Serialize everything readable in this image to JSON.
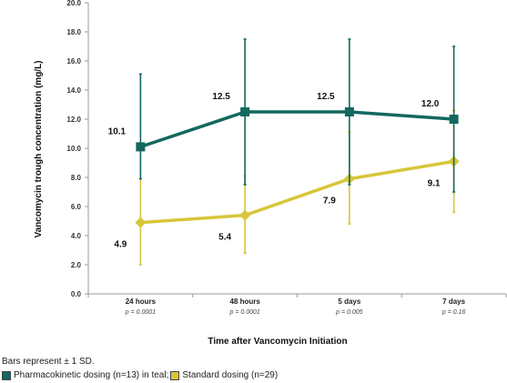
{
  "chart_data": {
    "type": "line",
    "categories": [
      "24 hours",
      "48 hours",
      "5 days",
      "7 days"
    ],
    "p_values": [
      "p = 0.0001",
      "p = 0.0001",
      "p = 0.005",
      "p = 0.16"
    ],
    "xlabel": "Time after Vancomycin Initiation",
    "ylabel": "Vancomycin trough concentration (mg/L)",
    "ylim": [
      0,
      20
    ],
    "yticks": [
      "0.0",
      "2.0",
      "4.0",
      "6.0",
      "8.0",
      "10.0",
      "12.0",
      "14.0",
      "16.0",
      "18.0",
      "20.0"
    ],
    "grid": false,
    "series": [
      {
        "values": [
          10.1,
          12.5,
          12.5,
          12.0
        ],
        "labels": [
          "10.1",
          "12.5",
          "12.5",
          "12.0"
        ],
        "err_high": [
          15.1,
          17.5,
          17.5,
          17.0
        ],
        "err_low": [
          7.9,
          7.5,
          7.5,
          7.0
        ],
        "color": "#13685f",
        "marker": "square"
      },
      {
        "values": [
          4.9,
          5.4,
          7.9,
          9.1
        ],
        "labels": [
          "4.9",
          "5.4",
          "7.9",
          "9.1"
        ],
        "err_high": [
          7.9,
          8.1,
          11.1,
          12.6
        ],
        "err_low": [
          2.0,
          2.8,
          4.8,
          5.6
        ],
        "color": "#d8c63a",
        "marker": "diamond"
      }
    ]
  },
  "footer": {
    "note": "Bars represent ± 1 SD.",
    "legend_pk": "Pharmacokinetic dosing (n=13) in teal;",
    "legend_std": "Standard dosing (n=29)"
  },
  "colors": {
    "pk": "#13685f",
    "std": "#d8c63a"
  }
}
